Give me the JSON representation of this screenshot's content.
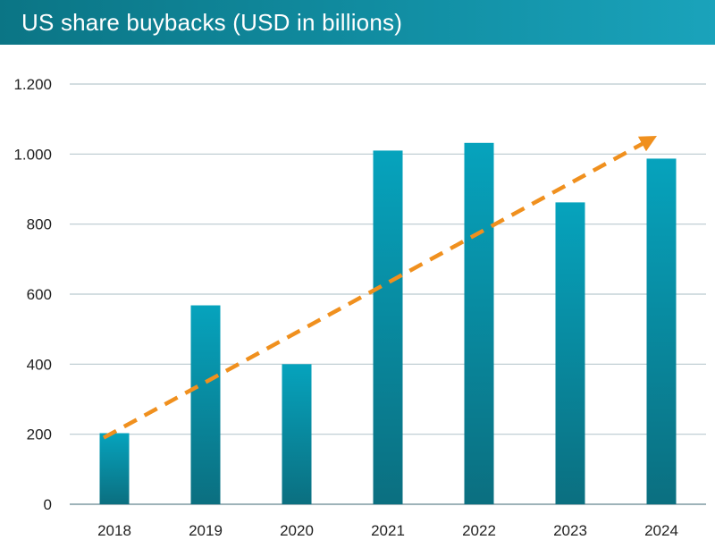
{
  "header": {
    "title": "US share buybacks (USD in billions)"
  },
  "chart_data": {
    "type": "bar",
    "title": "US share buybacks (USD in billions)",
    "xlabel": "",
    "ylabel": "",
    "categories": [
      "2018",
      "2019",
      "2020",
      "2021",
      "2022",
      "2023",
      "2024"
    ],
    "values": [
      203,
      568,
      400,
      1010,
      1032,
      862,
      987
    ],
    "ylim": [
      0,
      1200
    ],
    "yticks": [
      0,
      200,
      400,
      600,
      800,
      1000,
      1200
    ],
    "ytick_labels": [
      "0",
      "200",
      "400",
      "600",
      "800",
      "1.000",
      "1.200"
    ],
    "grid": true,
    "trend_arrow": {
      "from_value": 190,
      "to_value": 1045,
      "style": "dashed",
      "color": "#f0901e"
    },
    "colors": {
      "bar_top": "#06a3bd",
      "bar_bottom": "#0b6f80",
      "gridline": "#b9c9cf",
      "trend": "#f0901e"
    }
  }
}
